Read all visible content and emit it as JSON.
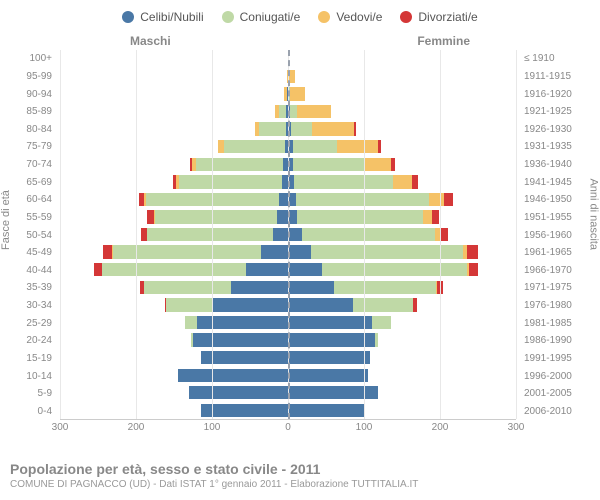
{
  "chart": {
    "type": "population-pyramid",
    "background_color": "#ffffff",
    "grid_color": "#e8e8e8",
    "center_line_color": "#9aa2ae",
    "text_color": "#888888",
    "legend": [
      {
        "label": "Celibi/Nubili",
        "color": "#4a78a6"
      },
      {
        "label": "Coniugati/e",
        "color": "#bfd9a6"
      },
      {
        "label": "Vedovi/e",
        "color": "#f5c267"
      },
      {
        "label": "Divorziati/e",
        "color": "#d43737"
      }
    ],
    "side_titles": {
      "left": "Maschi",
      "right": "Femmine"
    },
    "axis_titles": {
      "left": "Fasce di età",
      "right": "Anni di nascita"
    },
    "x_axis": {
      "max": 300,
      "ticks": [
        300,
        200,
        100,
        0,
        100,
        200,
        300
      ],
      "tick_positions_pct": [
        0,
        16.67,
        33.33,
        50,
        66.67,
        83.33,
        100
      ],
      "fontsize": 10
    },
    "y_fontsize": 10,
    "legend_fontsize": 12,
    "title_fontsize": 14,
    "rows": [
      {
        "age": "100+",
        "birth": "≤ 1910",
        "m": [
          0,
          0,
          0,
          0
        ],
        "f": [
          0,
          0,
          1,
          0
        ]
      },
      {
        "age": "95-99",
        "birth": "1911-1915",
        "m": [
          0,
          0,
          1,
          0
        ],
        "f": [
          0,
          1,
          8,
          0
        ]
      },
      {
        "age": "90-94",
        "birth": "1916-1920",
        "m": [
          1,
          1,
          3,
          0
        ],
        "f": [
          0,
          2,
          20,
          0
        ]
      },
      {
        "age": "85-89",
        "birth": "1921-1925",
        "m": [
          2,
          10,
          5,
          0
        ],
        "f": [
          2,
          10,
          45,
          0
        ]
      },
      {
        "age": "80-84",
        "birth": "1926-1930",
        "m": [
          3,
          35,
          6,
          0
        ],
        "f": [
          4,
          28,
          55,
          2
        ]
      },
      {
        "age": "75-79",
        "birth": "1931-1935",
        "m": [
          4,
          80,
          8,
          0
        ],
        "f": [
          6,
          58,
          55,
          3
        ]
      },
      {
        "age": "70-74",
        "birth": "1936-1940",
        "m": [
          6,
          115,
          6,
          2
        ],
        "f": [
          6,
          95,
          35,
          5
        ]
      },
      {
        "age": "65-69",
        "birth": "1941-1945",
        "m": [
          8,
          135,
          4,
          5
        ],
        "f": [
          8,
          130,
          25,
          8
        ]
      },
      {
        "age": "60-64",
        "birth": "1946-1950",
        "m": [
          12,
          175,
          3,
          6
        ],
        "f": [
          10,
          175,
          20,
          12
        ]
      },
      {
        "age": "55-59",
        "birth": "1951-1955",
        "m": [
          15,
          160,
          2,
          8
        ],
        "f": [
          12,
          165,
          12,
          10
        ]
      },
      {
        "age": "50-54",
        "birth": "1956-1960",
        "m": [
          20,
          165,
          1,
          8
        ],
        "f": [
          18,
          175,
          8,
          10
        ]
      },
      {
        "age": "45-49",
        "birth": "1961-1965",
        "m": [
          35,
          195,
          1,
          12
        ],
        "f": [
          30,
          200,
          5,
          15
        ]
      },
      {
        "age": "40-44",
        "birth": "1966-1970",
        "m": [
          55,
          190,
          0,
          10
        ],
        "f": [
          45,
          190,
          3,
          12
        ]
      },
      {
        "age": "35-39",
        "birth": "1971-1975",
        "m": [
          75,
          115,
          0,
          5
        ],
        "f": [
          60,
          135,
          1,
          8
        ]
      },
      {
        "age": "30-34",
        "birth": "1976-1980",
        "m": [
          100,
          60,
          0,
          2
        ],
        "f": [
          85,
          80,
          0,
          5
        ]
      },
      {
        "age": "25-29",
        "birth": "1981-1985",
        "m": [
          120,
          15,
          0,
          0
        ],
        "f": [
          110,
          25,
          0,
          0
        ]
      },
      {
        "age": "20-24",
        "birth": "1986-1990",
        "m": [
          125,
          2,
          0,
          0
        ],
        "f": [
          115,
          3,
          0,
          0
        ]
      },
      {
        "age": "15-19",
        "birth": "1991-1995",
        "m": [
          115,
          0,
          0,
          0
        ],
        "f": [
          108,
          0,
          0,
          0
        ]
      },
      {
        "age": "10-14",
        "birth": "1996-2000",
        "m": [
          145,
          0,
          0,
          0
        ],
        "f": [
          105,
          0,
          0,
          0
        ]
      },
      {
        "age": "5-9",
        "birth": "2001-2005",
        "m": [
          130,
          0,
          0,
          0
        ],
        "f": [
          118,
          0,
          0,
          0
        ]
      },
      {
        "age": "0-4",
        "birth": "2006-2010",
        "m": [
          115,
          0,
          0,
          0
        ],
        "f": [
          100,
          0,
          0,
          0
        ]
      }
    ],
    "footer": {
      "title": "Popolazione per età, sesso e stato civile - 2011",
      "subtitle": "COMUNE DI PAGNACCO (UD) - Dati ISTAT 1° gennaio 2011 - Elaborazione TUTTITALIA.IT"
    }
  }
}
